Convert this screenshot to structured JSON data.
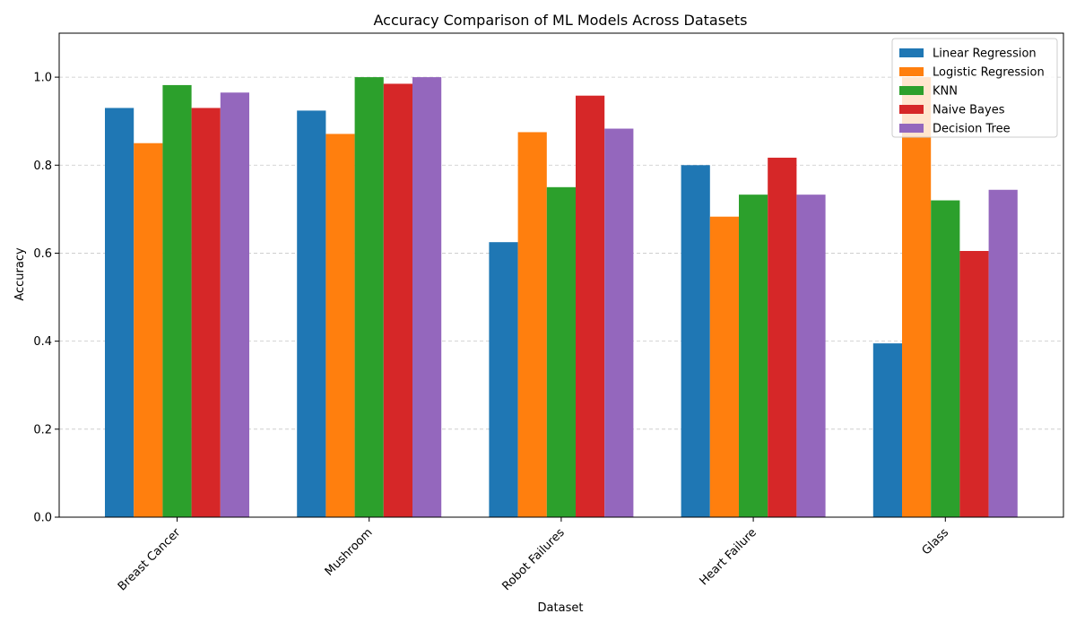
{
  "chart_data": {
    "type": "bar",
    "title": "Accuracy Comparison of ML Models Across Datasets",
    "xlabel": "Dataset",
    "ylabel": "Accuracy",
    "categories": [
      "Breast Cancer",
      "Mushroom",
      "Robot Failures",
      "Heart Failure",
      "Glass"
    ],
    "ylim": [
      0,
      1.1
    ],
    "yticks": [
      "0.0",
      "0.2",
      "0.4",
      "0.6",
      "0.8",
      "1.0"
    ],
    "grid": "y-dashed",
    "legend_position": "top-right",
    "series": [
      {
        "name": "Linear Regression",
        "color": "#1f77b4",
        "values": [
          0.93,
          0.924,
          0.625,
          0.8,
          0.395
        ]
      },
      {
        "name": "Logistic Regression",
        "color": "#ff7f0e",
        "values": [
          0.85,
          0.871,
          0.875,
          0.683,
          1.0
        ]
      },
      {
        "name": "KNN",
        "color": "#2ca02c",
        "values": [
          0.982,
          1.0,
          0.75,
          0.733,
          0.72
        ]
      },
      {
        "name": "Naive Bayes",
        "color": "#d62728",
        "values": [
          0.93,
          0.985,
          0.958,
          0.817,
          0.605
        ]
      },
      {
        "name": "Decision Tree",
        "color": "#9467bd",
        "values": [
          0.965,
          1.0,
          0.883,
          0.733,
          0.744
        ]
      }
    ]
  }
}
